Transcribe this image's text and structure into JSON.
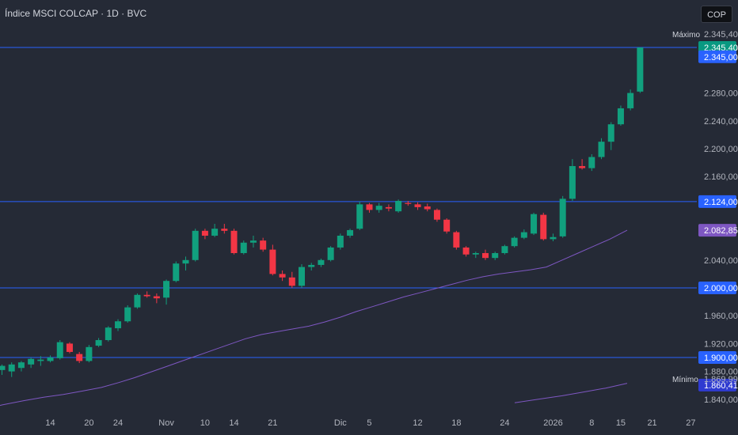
{
  "header": {
    "title": "Índice MSCI COLCAP · 1D · BVC",
    "currency": "COP"
  },
  "colors": {
    "up": "#11a07e",
    "down": "#f23645",
    "line": "#2962ff",
    "ma": "#7e57c2",
    "bg": "#252a36",
    "text": "#b2b5be"
  },
  "chart_data": {
    "type": "candlestick",
    "title": "Índice MSCI COLCAP · 1D · BVC",
    "price_ticks": [
      "2.345,00",
      "2.280,00",
      "2.240,00",
      "2.200,00",
      "2.160,00",
      "2.040,00",
      "1.960,00",
      "1.920,00",
      "1.880,00",
      "1.840,00"
    ],
    "date_ticks": [
      "14",
      "20",
      "24",
      "Nov",
      "10",
      "14",
      "21",
      "Dic",
      "5",
      "12",
      "18",
      "24",
      "2026",
      "8",
      "15",
      "21",
      "27"
    ],
    "horizontal_lines": [
      2345.4,
      2124.0,
      2000.0,
      1900.0
    ],
    "price_badges": [
      {
        "text": "2.345,40",
        "value": 2345.4,
        "color": "#089981"
      },
      {
        "text": "2.345,00",
        "value": 2332.0,
        "color": "#2962ff"
      },
      {
        "text": "2.124,00",
        "value": 2124.0,
        "color": "#2962ff"
      },
      {
        "text": "2.082,85",
        "value": 2082.85,
        "color": "#7e57c2"
      },
      {
        "text": "2.000,00",
        "value": 2000.0,
        "color": "#2962ff"
      },
      {
        "text": "1.900,00",
        "value": 1900.0,
        "color": "#2962ff"
      },
      {
        "text": "1.860,41",
        "value": 1860.41,
        "color": "#2f3bd1"
      }
    ],
    "max_label": {
      "name": "Máximo",
      "text": "2.345,40",
      "value": 2345.4
    },
    "min_label": {
      "name": "Mínimo",
      "text": "1.869,99",
      "value": 1869.99
    },
    "ylim": [
      1825,
      2370
    ],
    "candles": [
      {
        "d": "",
        "o": 1882,
        "h": 1890,
        "l": 1875,
        "c": 1888
      },
      {
        "d": "",
        "o": 1880,
        "h": 1893,
        "l": 1872,
        "c": 1890
      },
      {
        "d": "",
        "o": 1885,
        "h": 1895,
        "l": 1880,
        "c": 1893
      },
      {
        "d": "",
        "o": 1890,
        "h": 1900,
        "l": 1885,
        "c": 1898
      },
      {
        "d": "",
        "o": 1895,
        "h": 1902,
        "l": 1888,
        "c": 1897
      },
      {
        "d": "14",
        "o": 1895,
        "h": 1903,
        "l": 1893,
        "c": 1900
      },
      {
        "d": "",
        "o": 1899,
        "h": 1925,
        "l": 1897,
        "c": 1922
      },
      {
        "d": "",
        "o": 1920,
        "h": 1922,
        "l": 1906,
        "c": 1908
      },
      {
        "d": "",
        "o": 1905,
        "h": 1908,
        "l": 1892,
        "c": 1895
      },
      {
        "d": "20",
        "o": 1895,
        "h": 1918,
        "l": 1893,
        "c": 1915
      },
      {
        "d": "",
        "o": 1917,
        "h": 1928,
        "l": 1915,
        "c": 1925
      },
      {
        "d": "",
        "o": 1925,
        "h": 1945,
        "l": 1923,
        "c": 1943
      },
      {
        "d": "24",
        "o": 1942,
        "h": 1955,
        "l": 1938,
        "c": 1952
      },
      {
        "d": "",
        "o": 1952,
        "h": 1975,
        "l": 1950,
        "c": 1972
      },
      {
        "d": "",
        "o": 1972,
        "h": 1992,
        "l": 1970,
        "c": 1990
      },
      {
        "d": "",
        "o": 1990,
        "h": 1995,
        "l": 1986,
        "c": 1988
      },
      {
        "d": "",
        "o": 1988,
        "h": 1992,
        "l": 1978,
        "c": 1985
      },
      {
        "d": "Nov",
        "o": 1986,
        "h": 2012,
        "l": 1976,
        "c": 2010
      },
      {
        "d": "",
        "o": 2010,
        "h": 2038,
        "l": 2008,
        "c": 2035
      },
      {
        "d": "",
        "o": 2035,
        "h": 2045,
        "l": 2025,
        "c": 2040
      },
      {
        "d": "",
        "o": 2040,
        "h": 2085,
        "l": 2038,
        "c": 2082
      },
      {
        "d": "10",
        "o": 2082,
        "h": 2085,
        "l": 2070,
        "c": 2075
      },
      {
        "d": "",
        "o": 2075,
        "h": 2092,
        "l": 2073,
        "c": 2085
      },
      {
        "d": "",
        "o": 2085,
        "h": 2092,
        "l": 2078,
        "c": 2082
      },
      {
        "d": "14",
        "o": 2082,
        "h": 2085,
        "l": 2048,
        "c": 2050
      },
      {
        "d": "",
        "o": 2050,
        "h": 2068,
        "l": 2048,
        "c": 2065
      },
      {
        "d": "",
        "o": 2065,
        "h": 2075,
        "l": 2058,
        "c": 2068
      },
      {
        "d": "",
        "o": 2068,
        "h": 2072,
        "l": 2052,
        "c": 2055
      },
      {
        "d": "21",
        "o": 2055,
        "h": 2062,
        "l": 2018,
        "c": 2020
      },
      {
        "d": "",
        "o": 2020,
        "h": 2025,
        "l": 2010,
        "c": 2015
      },
      {
        "d": "",
        "o": 2015,
        "h": 2023,
        "l": 2000,
        "c": 2003
      },
      {
        "d": "",
        "o": 2003,
        "h": 2034,
        "l": 2000,
        "c": 2030
      },
      {
        "d": "",
        "o": 2030,
        "h": 2036,
        "l": 2025,
        "c": 2033
      },
      {
        "d": "",
        "o": 2033,
        "h": 2042,
        "l": 2030,
        "c": 2040
      },
      {
        "d": "",
        "o": 2040,
        "h": 2060,
        "l": 2038,
        "c": 2058
      },
      {
        "d": "Dic",
        "o": 2058,
        "h": 2078,
        "l": 2055,
        "c": 2075
      },
      {
        "d": "",
        "o": 2075,
        "h": 2085,
        "l": 2072,
        "c": 2083
      },
      {
        "d": "",
        "o": 2085,
        "h": 2124,
        "l": 2083,
        "c": 2120
      },
      {
        "d": "5",
        "o": 2120,
        "h": 2122,
        "l": 2108,
        "c": 2112
      },
      {
        "d": "",
        "o": 2112,
        "h": 2122,
        "l": 2108,
        "c": 2118
      },
      {
        "d": "",
        "o": 2116,
        "h": 2120,
        "l": 2110,
        "c": 2114
      },
      {
        "d": "",
        "o": 2110,
        "h": 2127,
        "l": 2108,
        "c": 2125
      },
      {
        "d": "",
        "o": 2122,
        "h": 2125,
        "l": 2118,
        "c": 2121
      },
      {
        "d": "12",
        "o": 2120,
        "h": 2123,
        "l": 2112,
        "c": 2116
      },
      {
        "d": "",
        "o": 2117,
        "h": 2121,
        "l": 2110,
        "c": 2113
      },
      {
        "d": "",
        "o": 2112,
        "h": 2114,
        "l": 2095,
        "c": 2098
      },
      {
        "d": "",
        "o": 2098,
        "h": 2100,
        "l": 2078,
        "c": 2081
      },
      {
        "d": "18",
        "o": 2080,
        "h": 2082,
        "l": 2055,
        "c": 2058
      },
      {
        "d": "",
        "o": 2058,
        "h": 2060,
        "l": 2045,
        "c": 2048
      },
      {
        "d": "",
        "o": 2048,
        "h": 2052,
        "l": 2043,
        "c": 2050
      },
      {
        "d": "",
        "o": 2050,
        "h": 2055,
        "l": 2040,
        "c": 2043
      },
      {
        "d": "",
        "o": 2043,
        "h": 2052,
        "l": 2040,
        "c": 2050
      },
      {
        "d": "24",
        "o": 2050,
        "h": 2062,
        "l": 2048,
        "c": 2060
      },
      {
        "d": "",
        "o": 2060,
        "h": 2074,
        "l": 2058,
        "c": 2072
      },
      {
        "d": "",
        "o": 2072,
        "h": 2084,
        "l": 2070,
        "c": 2080
      },
      {
        "d": "",
        "o": 2078,
        "h": 2108,
        "l": 2076,
        "c": 2106
      },
      {
        "d": "",
        "o": 2105,
        "h": 2108,
        "l": 2068,
        "c": 2070
      },
      {
        "d": "2026",
        "o": 2070,
        "h": 2078,
        "l": 2067,
        "c": 2073
      },
      {
        "d": "",
        "o": 2074,
        "h": 2132,
        "l": 2072,
        "c": 2128
      },
      {
        "d": "",
        "o": 2128,
        "h": 2185,
        "l": 2125,
        "c": 2175
      },
      {
        "d": "",
        "o": 2175,
        "h": 2185,
        "l": 2170,
        "c": 2172
      },
      {
        "d": "8",
        "o": 2172,
        "h": 2192,
        "l": 2168,
        "c": 2188
      },
      {
        "d": "",
        "o": 2188,
        "h": 2215,
        "l": 2185,
        "c": 2210
      },
      {
        "d": "",
        "o": 2210,
        "h": 2238,
        "l": 2198,
        "c": 2235
      },
      {
        "d": "15",
        "o": 2235,
        "h": 2262,
        "l": 2233,
        "c": 2258
      },
      {
        "d": "",
        "o": 2258,
        "h": 2285,
        "l": 2255,
        "c": 2280
      },
      {
        "d": "",
        "o": 2282,
        "h": 2345.4,
        "l": 2280,
        "c": 2345.4
      }
    ],
    "ma_series": [
      {
        "name": "",
        "values": [
          [
            -12,
            1828
          ],
          [
            3,
            1832
          ],
          [
            30,
            1838
          ],
          [
            55,
            1843
          ],
          [
            80,
            1847
          ],
          [
            105,
            1852
          ],
          [
            128,
            1857
          ],
          [
            150,
            1864
          ],
          [
            170,
            1871
          ],
          [
            190,
            1879
          ],
          [
            210,
            1887
          ],
          [
            230,
            1895
          ],
          [
            250,
            1903
          ],
          [
            270,
            1911
          ],
          [
            290,
            1919
          ],
          [
            310,
            1927
          ],
          [
            330,
            1933
          ],
          [
            350,
            1937
          ],
          [
            370,
            1941
          ],
          [
            390,
            1945
          ],
          [
            410,
            1951
          ],
          [
            430,
            1958
          ],
          [
            450,
            1966
          ],
          [
            470,
            1973
          ],
          [
            490,
            1980
          ],
          [
            510,
            1987
          ],
          [
            530,
            1993
          ],
          [
            550,
            1999
          ],
          [
            570,
            2005
          ],
          [
            590,
            2011
          ],
          [
            610,
            2016
          ],
          [
            630,
            2020
          ],
          [
            650,
            2023
          ],
          [
            670,
            2026
          ],
          [
            690,
            2030
          ],
          [
            710,
            2040
          ],
          [
            730,
            2050
          ],
          [
            750,
            2060
          ],
          [
            770,
            2070
          ],
          [
            792,
            2082.85
          ]
        ]
      },
      {
        "name": "",
        "values": [
          [
            650,
            1835
          ],
          [
            680,
            1840
          ],
          [
            710,
            1845
          ],
          [
            740,
            1851
          ],
          [
            765,
            1856
          ],
          [
            792,
            1863
          ]
        ]
      }
    ]
  }
}
